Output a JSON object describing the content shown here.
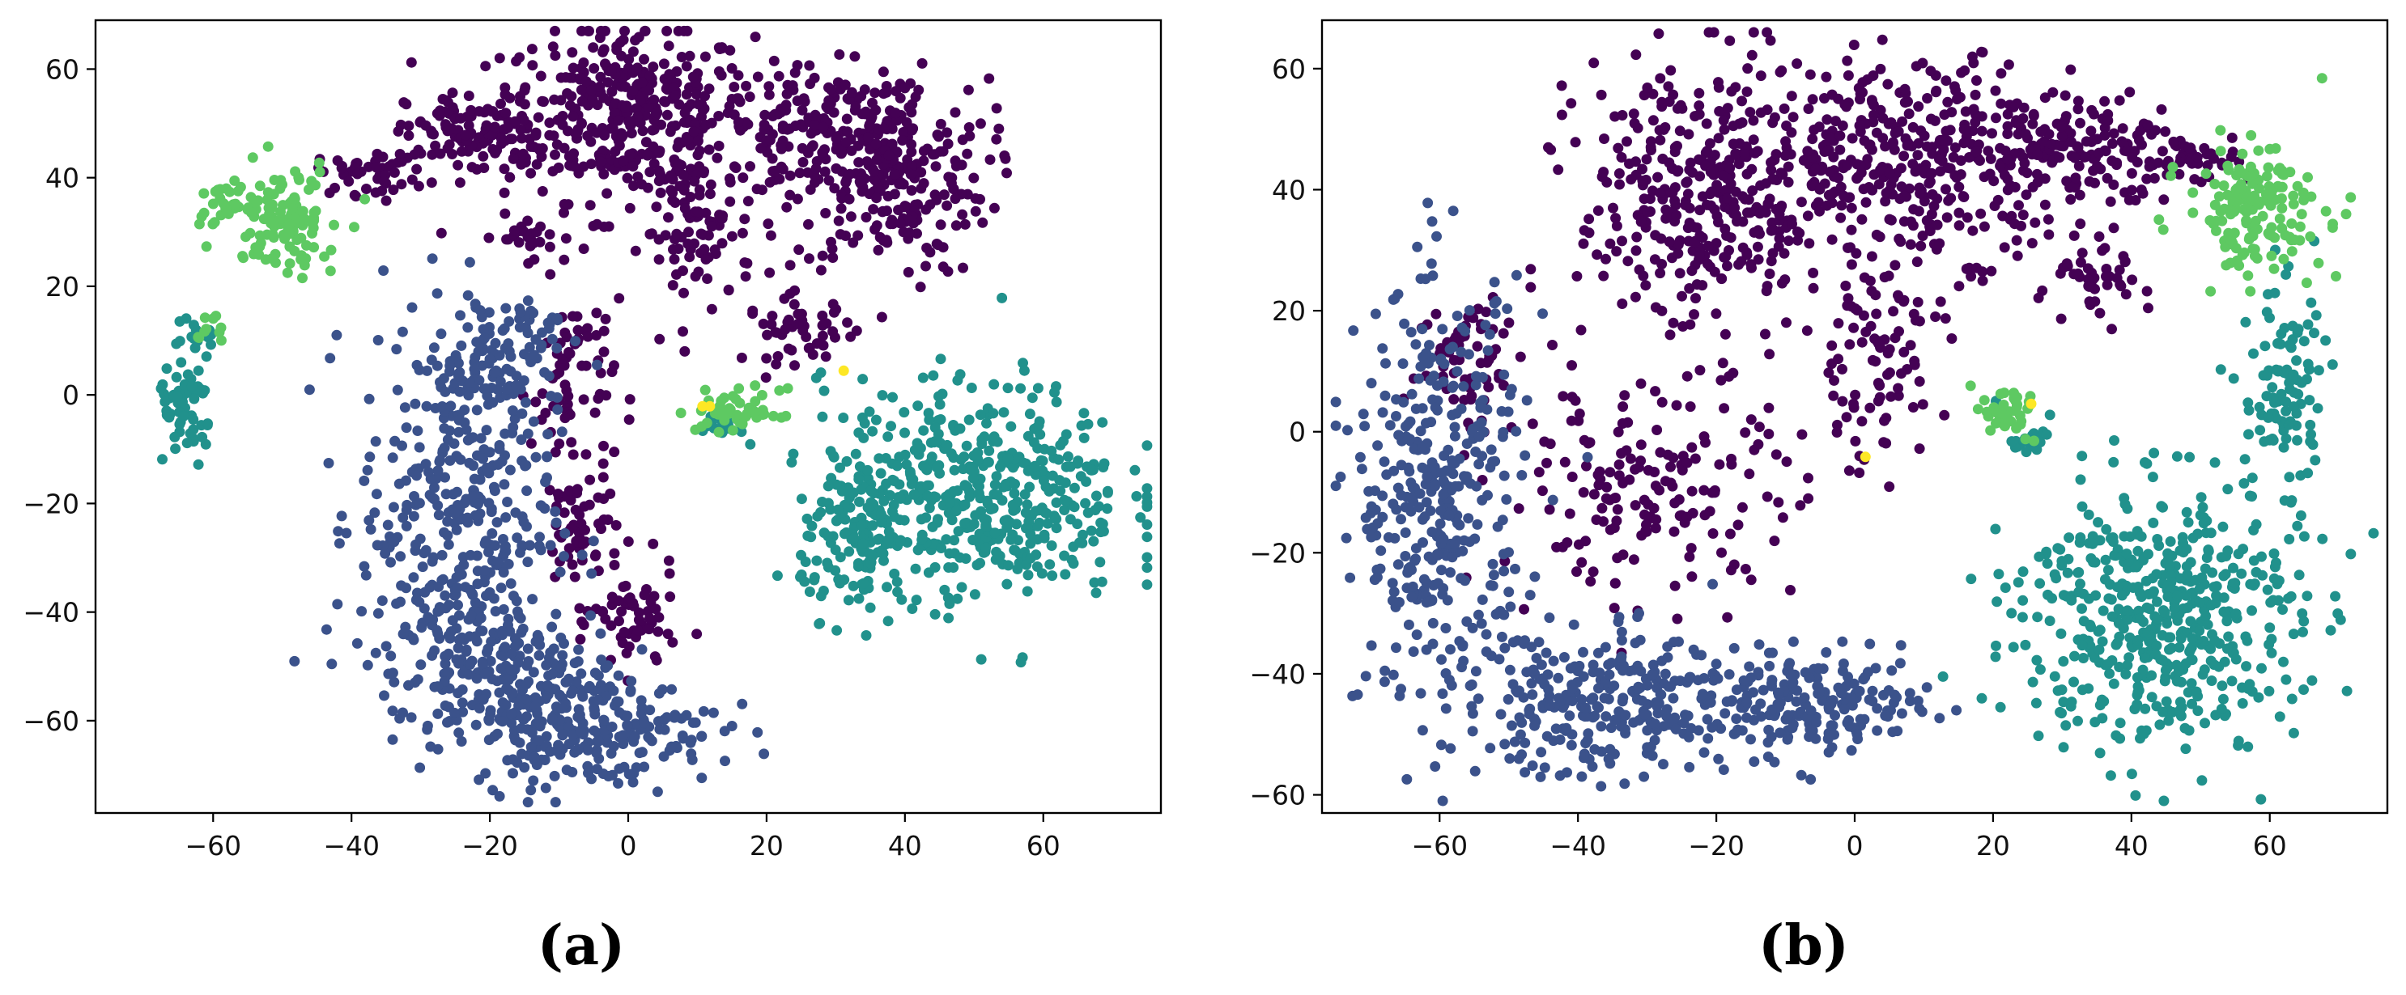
{
  "chart_data": [
    {
      "type": "scatter",
      "caption": "(a)",
      "xlim": [
        -77,
        77
      ],
      "ylim": [
        -77,
        69
      ],
      "xticks": [
        -60,
        -40,
        -20,
        0,
        20,
        40,
        60
      ],
      "yticks": [
        -60,
        -40,
        -20,
        0,
        20,
        40,
        60
      ],
      "grid": false,
      "legend": "none",
      "series": [
        {
          "color": "#440154",
          "clusters": [
            {
              "cx": 0,
              "cy": 52,
              "sx": 9,
              "sy": 8,
              "n": 380
            },
            {
              "cx": 28,
              "cy": 48,
              "sx": 8,
              "sy": 6,
              "n": 180
            },
            {
              "cx": 38,
              "cy": 40,
              "sx": 7,
              "sy": 9,
              "n": 240
            },
            {
              "cx": -22,
              "cy": 48,
              "sx": 5,
              "sy": 4,
              "n": 120
            },
            {
              "cx": -37,
              "cy": 41,
              "sx": 4,
              "sy": 2,
              "n": 50
            },
            {
              "cx": -15,
              "cy": 29,
              "sx": 4,
              "sy": 2,
              "n": 30
            },
            {
              "cx": 10,
              "cy": 30,
              "sx": 4,
              "sy": 7,
              "n": 90
            },
            {
              "cx": 25,
              "cy": 12,
              "sx": 4,
              "sy": 3,
              "n": 50
            },
            {
              "cx": -8,
              "cy": 2,
              "sx": 3,
              "sy": 9,
              "n": 70
            },
            {
              "cx": -7,
              "cy": -25,
              "sx": 3,
              "sy": 6,
              "n": 60
            },
            {
              "cx": 1,
              "cy": -42,
              "sx": 3,
              "sy": 5,
              "n": 60
            }
          ]
        },
        {
          "color": "#3b528b",
          "clusters": [
            {
              "cx": -25,
              "cy": -22,
              "sx": 7,
              "sy": 18,
              "n": 380
            },
            {
              "cx": -20,
              "cy": 5,
              "sx": 4,
              "sy": 7,
              "n": 70
            },
            {
              "cx": -13,
              "cy": 12,
              "sx": 3,
              "sy": 3,
              "n": 30
            },
            {
              "cx": -5,
              "cy": -62,
              "sx": 9,
              "sy": 5,
              "n": 200
            },
            {
              "cx": -18,
              "cy": -52,
              "sx": 8,
              "sy": 7,
              "n": 220
            }
          ]
        },
        {
          "color": "#21918c",
          "clusters": [
            {
              "cx": 50,
              "cy": -18,
              "sx": 11,
              "sy": 10,
              "n": 500
            },
            {
              "cx": 33,
              "cy": -28,
              "sx": 4,
              "sy": 6,
              "n": 100
            },
            {
              "cx": -64,
              "cy": -3,
              "sx": 2,
              "sy": 5,
              "n": 60
            },
            {
              "cx": -62,
              "cy": 10,
              "sx": 1.5,
              "sy": 2,
              "n": 15
            },
            {
              "cx": 13,
              "cy": -6,
              "sx": 1.5,
              "sy": 1.2,
              "n": 20
            }
          ]
        },
        {
          "color": "#5ec962",
          "clusters": [
            {
              "cx": -50,
              "cy": 33,
              "sx": 4,
              "sy": 5,
              "n": 110
            },
            {
              "cx": -59,
              "cy": 35,
              "sx": 2,
              "sy": 1.5,
              "n": 25
            },
            {
              "cx": 16,
              "cy": -3,
              "sx": 3,
              "sy": 2,
              "n": 50
            },
            {
              "cx": -60,
              "cy": 12,
              "sx": 1.5,
              "sy": 1.5,
              "n": 10
            }
          ]
        },
        {
          "color": "#fde725",
          "clusters": [
            {
              "cx": 12,
              "cy": -2,
              "sx": 1,
              "sy": 1,
              "n": 2
            },
            {
              "cx": 31,
              "cy": 5,
              "sx": 0.5,
              "sy": 0.5,
              "n": 1
            }
          ]
        }
      ]
    },
    {
      "type": "scatter",
      "caption": "(b)",
      "xlim": [
        -77,
        77
      ],
      "ylim": [
        -63,
        68
      ],
      "xticks": [
        -60,
        -40,
        -20,
        0,
        20,
        40,
        60
      ],
      "yticks": [
        -60,
        -40,
        -20,
        0,
        20,
        40,
        60
      ],
      "grid": false,
      "legend": "none",
      "series": [
        {
          "color": "#440154",
          "clusters": [
            {
              "cx": -22,
              "cy": 38,
              "sx": 9,
              "sy": 12,
              "n": 380
            },
            {
              "cx": 10,
              "cy": 45,
              "sx": 12,
              "sy": 8,
              "n": 380
            },
            {
              "cx": 32,
              "cy": 47,
              "sx": 8,
              "sy": 4,
              "n": 130
            },
            {
              "cx": 3,
              "cy": 12,
              "sx": 5,
              "sy": 9,
              "n": 90
            },
            {
              "cx": 34,
              "cy": 24,
              "sx": 4,
              "sy": 3,
              "n": 45
            },
            {
              "cx": -30,
              "cy": -10,
              "sx": 11,
              "sy": 8,
              "n": 170
            },
            {
              "cx": -55,
              "cy": 12,
              "sx": 4,
              "sy": 6,
              "n": 60
            },
            {
              "cx": 48,
              "cy": 45,
              "sx": 5,
              "sy": 2,
              "n": 40
            }
          ]
        },
        {
          "color": "#3b528b",
          "clusters": [
            {
              "cx": -60,
              "cy": -10,
              "sx": 6,
              "sy": 17,
              "n": 360
            },
            {
              "cx": -35,
              "cy": -45,
              "sx": 12,
              "sy": 6,
              "n": 300
            },
            {
              "cx": -5,
              "cy": -45,
              "sx": 8,
              "sy": 4,
              "n": 180
            }
          ]
        },
        {
          "color": "#21918c",
          "clusters": [
            {
              "cx": 44,
              "cy": -30,
              "sx": 10,
              "sy": 11,
              "n": 520
            },
            {
              "cx": 62,
              "cy": 7,
              "sx": 3,
              "sy": 9,
              "n": 100
            },
            {
              "cx": 25,
              "cy": -2,
              "sx": 1.5,
              "sy": 1.2,
              "n": 20
            }
          ]
        },
        {
          "color": "#5ec962",
          "clusters": [
            {
              "cx": 58,
              "cy": 37,
              "sx": 5,
              "sy": 5,
              "n": 160
            },
            {
              "cx": 22,
              "cy": 3,
              "sx": 2.5,
              "sy": 2,
              "n": 40
            }
          ]
        },
        {
          "color": "#fde725",
          "clusters": [
            {
              "cx": 25,
              "cy": 5,
              "sx": 0.5,
              "sy": 0.5,
              "n": 1
            },
            {
              "cx": 1,
              "cy": -5,
              "sx": 0.5,
              "sy": 0.5,
              "n": 1
            }
          ]
        }
      ]
    }
  ]
}
